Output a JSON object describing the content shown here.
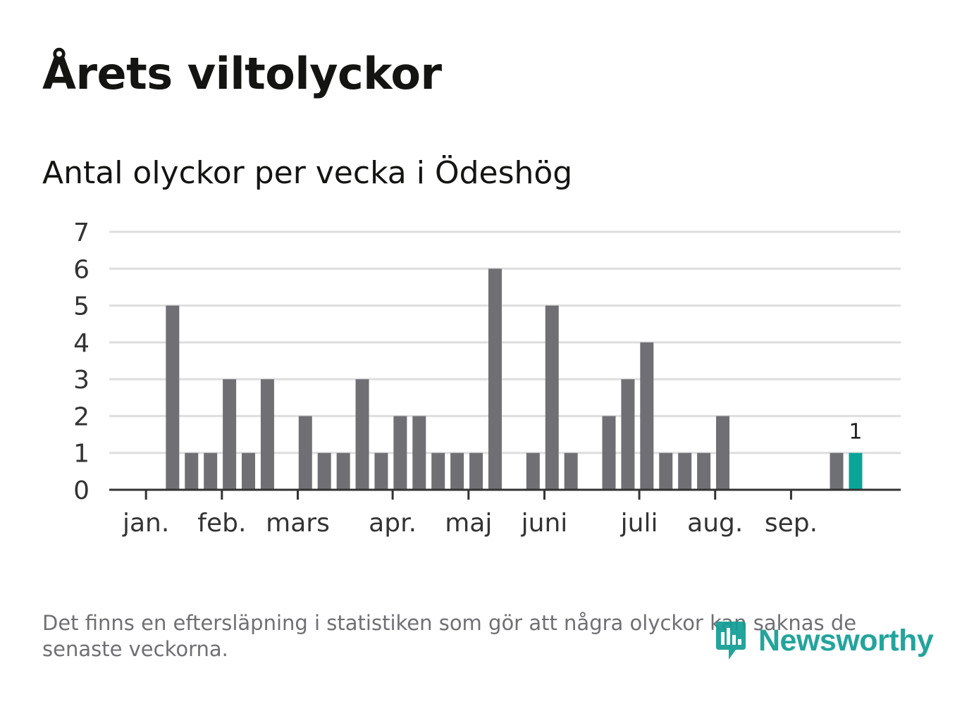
{
  "header": {
    "title": "Årets viltolyckor",
    "subtitle": "Antal olyckor per vecka i Ödeshög"
  },
  "footer": {
    "note": "Det finns en eftersläpning i statistiken som gör att några olyckor kan saknas de senaste veckorna.",
    "logo_text": "Newsworthy"
  },
  "colors": {
    "bar": "#706f74",
    "highlight": "#0aa596",
    "grid": "#dedede",
    "axis": "#333333",
    "brand": "#139e95"
  },
  "chart_data": {
    "type": "bar",
    "title": "Antal olyckor per vecka i Ödeshög",
    "xlabel": "",
    "ylabel": "",
    "ylim": [
      0,
      7
    ],
    "yticks": [
      "0",
      "1",
      "2",
      "3",
      "4",
      "5",
      "6",
      "7"
    ],
    "grid": true,
    "weeks": [
      1,
      2,
      3,
      4,
      5,
      6,
      7,
      8,
      9,
      10,
      11,
      12,
      13,
      14,
      15,
      16,
      17,
      18,
      19,
      20,
      21,
      22,
      23,
      24,
      25,
      26,
      27,
      28,
      29,
      30,
      31,
      32,
      33,
      34,
      35,
      36,
      37,
      38,
      39,
      40
    ],
    "values": [
      0,
      0,
      5,
      1,
      1,
      3,
      1,
      3,
      0,
      2,
      1,
      1,
      3,
      1,
      2,
      2,
      1,
      1,
      1,
      6,
      0,
      1,
      5,
      1,
      0,
      2,
      3,
      4,
      1,
      1,
      1,
      2,
      0,
      0,
      0,
      0,
      0,
      1,
      1,
      0
    ],
    "highlight_week": 39,
    "highlight_label": "1",
    "month_ticks": [
      {
        "label": "jan.",
        "week": 1.6
      },
      {
        "label": "feb.",
        "week": 5.6
      },
      {
        "label": "mars",
        "week": 9.6
      },
      {
        "label": "apr.",
        "week": 14.6
      },
      {
        "label": "maj",
        "week": 18.6
      },
      {
        "label": "juni",
        "week": 22.6
      },
      {
        "label": "juli",
        "week": 27.6
      },
      {
        "label": "aug.",
        "week": 31.6
      },
      {
        "label": "sep.",
        "week": 35.6
      }
    ]
  }
}
